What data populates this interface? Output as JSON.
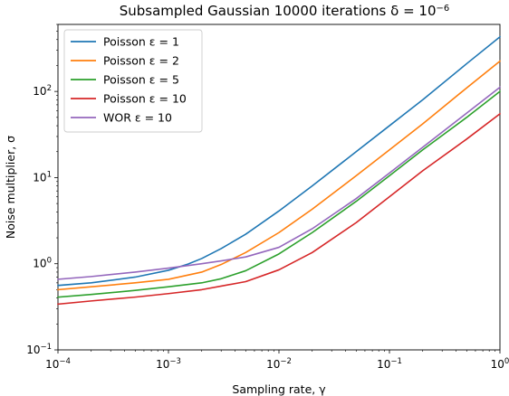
{
  "chart_data": {
    "type": "line",
    "title": "Subsampled Gaussian 10000 iterations δ = 10",
    "title_exponent": "−6",
    "xlabel": "Sampling rate, γ",
    "ylabel": "Noise multiplier, σ",
    "xscale": "log",
    "yscale": "log",
    "xlim": [
      0.0001,
      1
    ],
    "ylim": [
      0.1,
      600
    ],
    "x_ticks": [
      {
        "value": 0.0001,
        "base": "10",
        "exp": "−4"
      },
      {
        "value": 0.001,
        "base": "10",
        "exp": "−3"
      },
      {
        "value": 0.01,
        "base": "10",
        "exp": "−2"
      },
      {
        "value": 0.1,
        "base": "10",
        "exp": "−1"
      },
      {
        "value": 1,
        "base": "10",
        "exp": "0"
      }
    ],
    "y_ticks": [
      {
        "value": 0.1,
        "base": "10",
        "exp": "−1"
      },
      {
        "value": 1,
        "base": "10",
        "exp": "0"
      },
      {
        "value": 10,
        "base": "10",
        "exp": "1"
      },
      {
        "value": 100,
        "base": "10",
        "exp": "2"
      }
    ],
    "grid": false,
    "legend_position": "top-left",
    "series": [
      {
        "name": "Poisson ε = 1",
        "color": "#1f77b4",
        "x": [
          0.0001,
          0.0002,
          0.0005,
          0.001,
          0.0015,
          0.002,
          0.003,
          0.005,
          0.01,
          0.02,
          0.05,
          0.1,
          0.2,
          0.5,
          1
        ],
        "y": [
          0.56,
          0.6,
          0.7,
          0.84,
          0.99,
          1.15,
          1.5,
          2.2,
          4.1,
          8.0,
          20,
          40,
          80,
          210,
          430
        ]
      },
      {
        "name": "Poisson ε = 2",
        "color": "#ff7f0e",
        "x": [
          0.0001,
          0.0002,
          0.0005,
          0.001,
          0.002,
          0.003,
          0.005,
          0.01,
          0.02,
          0.05,
          0.1,
          0.2,
          0.5,
          1
        ],
        "y": [
          0.5,
          0.54,
          0.6,
          0.66,
          0.8,
          0.98,
          1.35,
          2.3,
          4.3,
          10.5,
          21,
          42,
          110,
          225
        ]
      },
      {
        "name": "Poisson ε = 5",
        "color": "#2ca02c",
        "x": [
          0.0001,
          0.0002,
          0.0005,
          0.001,
          0.002,
          0.003,
          0.005,
          0.01,
          0.02,
          0.05,
          0.1,
          0.2,
          0.5,
          1
        ],
        "y": [
          0.41,
          0.44,
          0.49,
          0.54,
          0.6,
          0.67,
          0.83,
          1.3,
          2.3,
          5.3,
          10.5,
          21,
          50,
          100
        ]
      },
      {
        "name": "Poisson ε = 10",
        "color": "#d62728",
        "x": [
          0.0001,
          0.0002,
          0.0005,
          0.001,
          0.002,
          0.003,
          0.005,
          0.01,
          0.02,
          0.05,
          0.1,
          0.2,
          0.5,
          1
        ],
        "y": [
          0.34,
          0.37,
          0.41,
          0.45,
          0.5,
          0.55,
          0.62,
          0.85,
          1.35,
          3.0,
          6.0,
          12,
          28,
          55
        ]
      },
      {
        "name": "WOR ε = 10",
        "color": "#9467bd",
        "x": [
          0.0001,
          0.0002,
          0.0005,
          0.001,
          0.002,
          0.003,
          0.005,
          0.01,
          0.02,
          0.05,
          0.1,
          0.2,
          0.5,
          1
        ],
        "y": [
          0.66,
          0.71,
          0.8,
          0.89,
          1.0,
          1.08,
          1.2,
          1.55,
          2.55,
          5.7,
          11.3,
          22.5,
          56,
          112
        ]
      }
    ]
  }
}
